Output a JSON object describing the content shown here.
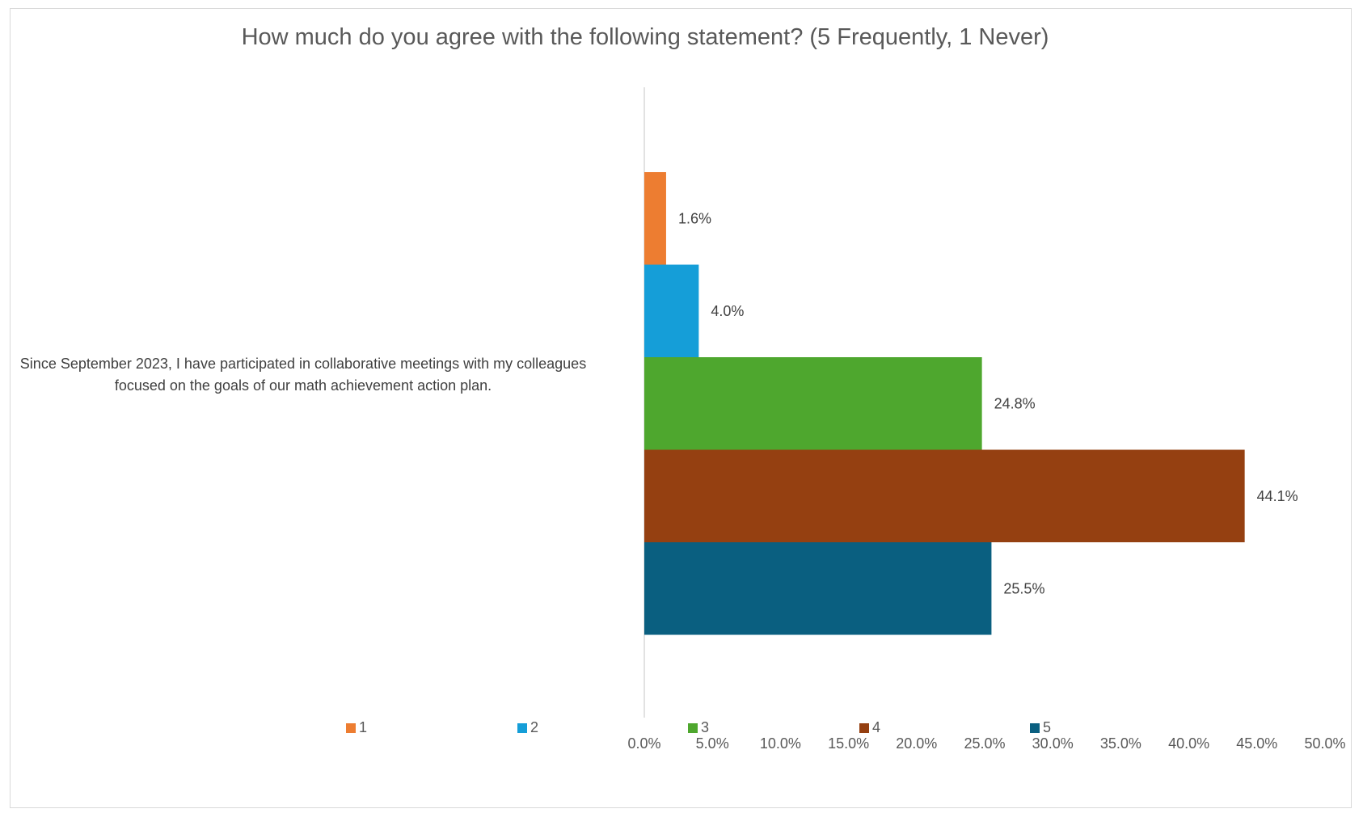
{
  "chart_data": {
    "type": "bar",
    "orientation": "horizontal",
    "title": "How much do you agree with the following statement? (5 Frequently, 1 Never)",
    "categories": [
      "Since September 2023, I have participated in collaborative meetings with my colleagues focused on the goals of our math achievement action plan."
    ],
    "series": [
      {
        "name": "1",
        "values": [
          1.6
        ],
        "label": "1.6%",
        "color": "#ED7D31"
      },
      {
        "name": "2",
        "values": [
          4.0
        ],
        "label": "4.0%",
        "color": "#159ED8"
      },
      {
        "name": "3",
        "values": [
          24.8
        ],
        "label": "24.8%",
        "color": "#4EA72E"
      },
      {
        "name": "4",
        "values": [
          44.1
        ],
        "label": "44.1%",
        "color": "#954011"
      },
      {
        "name": "5",
        "values": [
          25.5
        ],
        "label": "25.5%",
        "color": "#0A5F80"
      }
    ],
    "x_ticks": [
      "0.0%",
      "5.0%",
      "10.0%",
      "15.0%",
      "20.0%",
      "25.0%",
      "30.0%",
      "35.0%",
      "40.0%",
      "45.0%",
      "50.0%"
    ],
    "xlim": [
      0,
      50
    ],
    "grid": false,
    "legend_position": "bottom",
    "axis_color": "#d9d9d9"
  }
}
